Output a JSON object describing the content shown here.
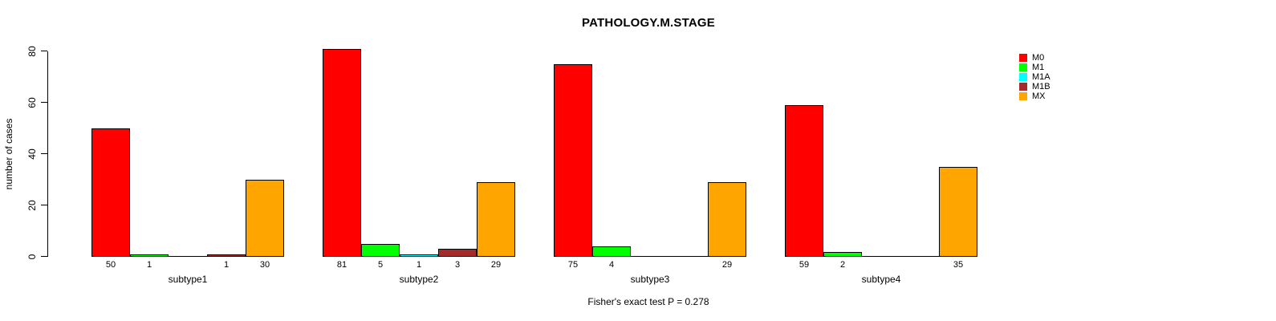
{
  "header": {
    "title": "PATHOLOGY.M.STAGE"
  },
  "y_axis": {
    "label": "number of cases"
  },
  "footer": {
    "caption": "Fisher's exact test P = 0.278"
  },
  "chart_data": {
    "type": "bar",
    "title": "PATHOLOGY.M.STAGE",
    "xlabel": "",
    "ylabel": "number of cases",
    "ylim": [
      0,
      80
    ],
    "yticks": [
      0,
      20,
      40,
      60,
      80
    ],
    "grid": false,
    "legend_position": "top-right",
    "bar_value_labels": true,
    "categories": [
      "subtype1",
      "subtype2",
      "subtype3",
      "subtype4"
    ],
    "series": [
      {
        "name": "M0",
        "color": "#FF0000",
        "values": [
          50,
          81,
          75,
          59
        ]
      },
      {
        "name": "M1",
        "color": "#00FF00",
        "values": [
          1,
          5,
          4,
          2
        ]
      },
      {
        "name": "M1A",
        "color": "#00FFFF",
        "values": [
          0,
          1,
          0,
          0
        ]
      },
      {
        "name": "M1B",
        "color": "#A52A2A",
        "values": [
          1,
          3,
          0,
          0
        ]
      },
      {
        "name": "MX",
        "color": "#FFA500",
        "values": [
          30,
          29,
          29,
          35
        ]
      }
    ],
    "annotation": "Fisher's exact test P = 0.278"
  }
}
